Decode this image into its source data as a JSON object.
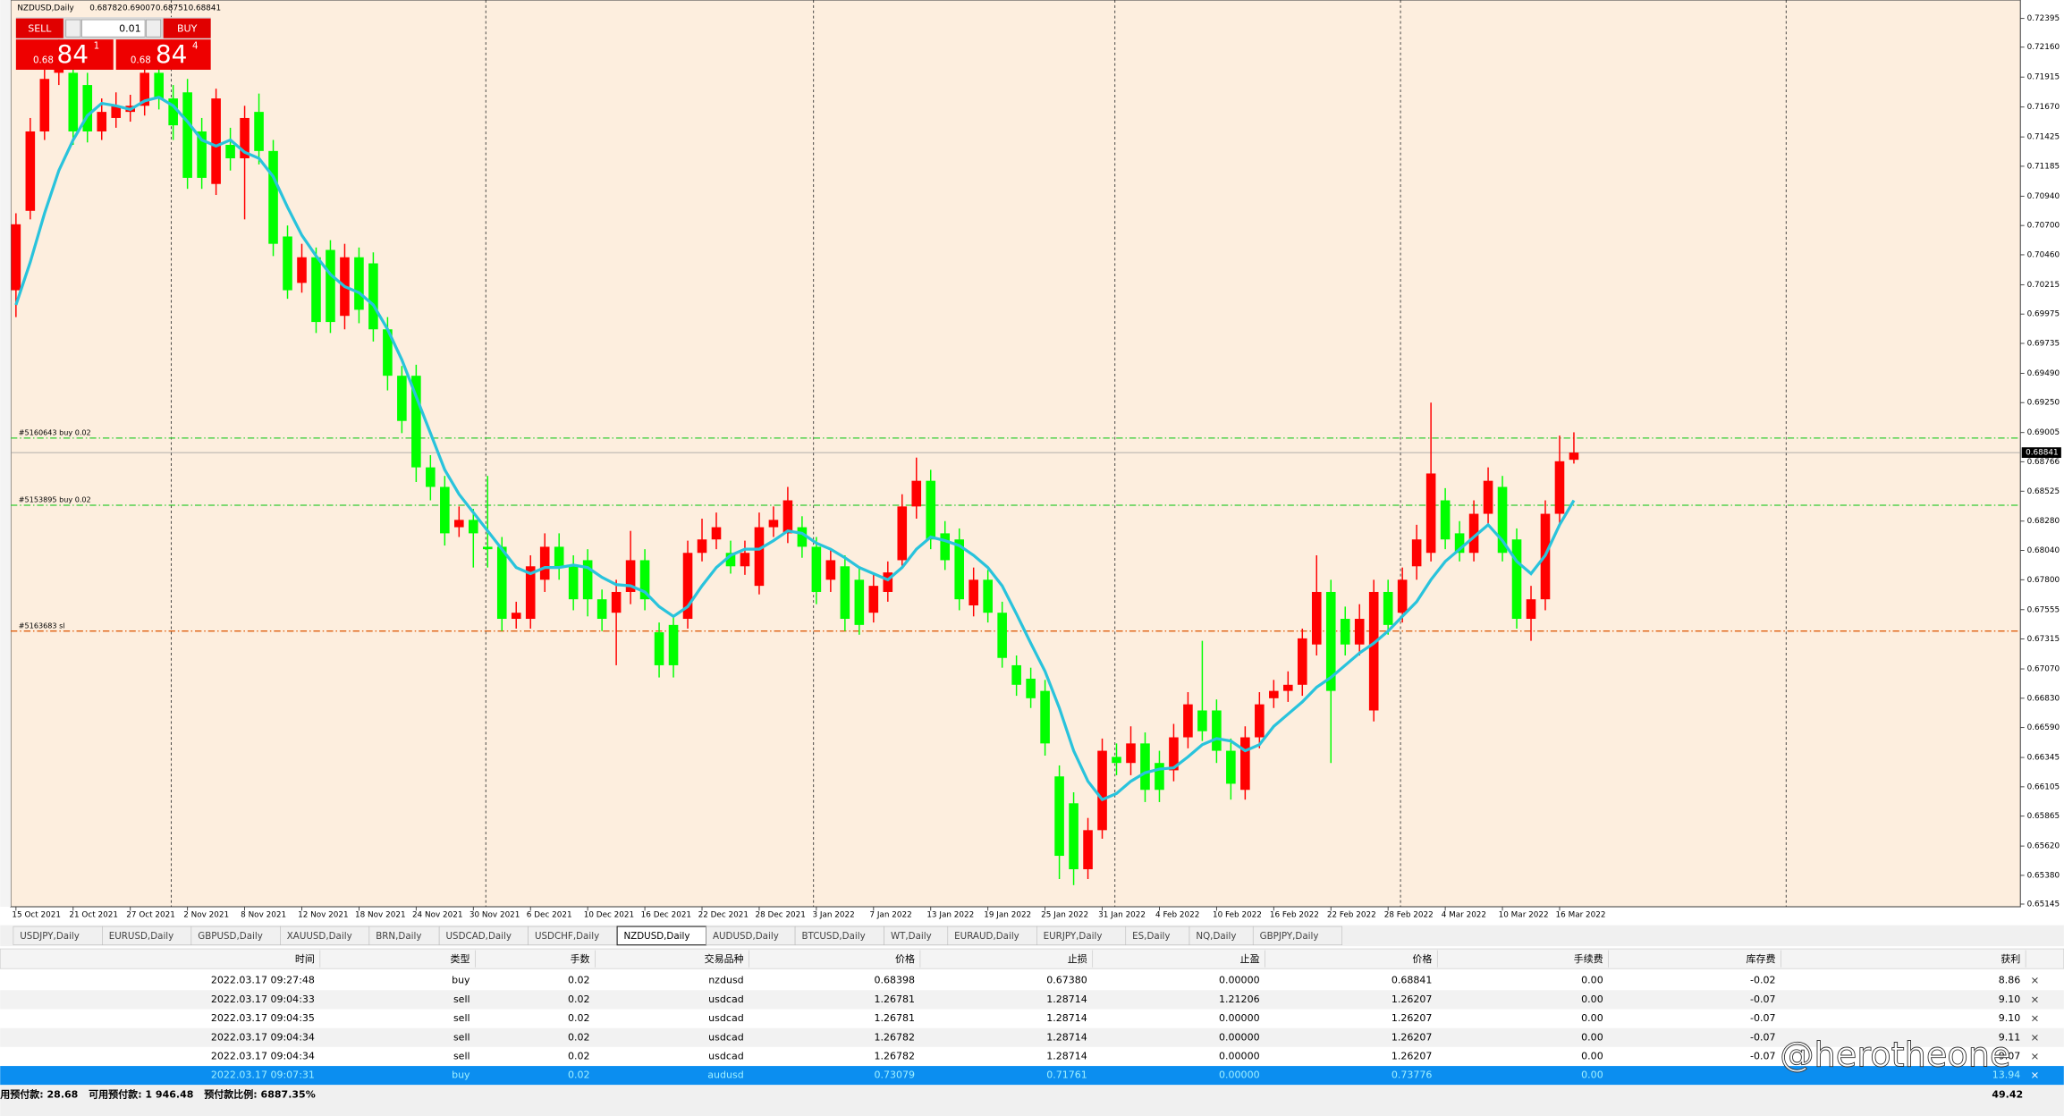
{
  "chart_data": {
    "type": "candlestick",
    "symbol": "NZDUSD,Daily",
    "up_color": "#ff0000",
    "down_color": "#00ff00",
    "categories": [
      "15 Oct 2021",
      null,
      null,
      null,
      "21 Oct 2021",
      null,
      null,
      null,
      "27 Oct 2021",
      null,
      null,
      null,
      "2 Nov 2021",
      null,
      null,
      null,
      "8 Nov 2021",
      null,
      null,
      null,
      "12 Nov 2021",
      null,
      null,
      null,
      "18 Nov 2021",
      null,
      null,
      null,
      "24 Nov 2021",
      null,
      null,
      null,
      "30 Nov 2021",
      null,
      null,
      null,
      "6 Dec 2021",
      null,
      null,
      null,
      "10 Dec 2021",
      null,
      null,
      null,
      "16 Dec 2021",
      null,
      null,
      null,
      "22 Dec 2021",
      null,
      null,
      null,
      "28 Dec 2021",
      null,
      null,
      null,
      "3 Jan 2022",
      null,
      null,
      null,
      "7 Jan 2022",
      null,
      null,
      null,
      "13 Jan 2022",
      null,
      null,
      null,
      "19 Jan 2022",
      null,
      null,
      null,
      "25 Jan 2022",
      null,
      null,
      null,
      "31 Jan 2022",
      null,
      null,
      null,
      "4 Feb 2022",
      null,
      null,
      null,
      "10 Feb 2022",
      null,
      null,
      null,
      "16 Feb 2022",
      null,
      null,
      null,
      "22 Feb 2022",
      null,
      null,
      null,
      "28 Feb 2022",
      null,
      null,
      null,
      "4 Mar 2022",
      null,
      null,
      null,
      "10 Mar 2022",
      null,
      null,
      null,
      "16 Mar 2022",
      null
    ],
    "open": [
      0.7017,
      0.7082,
      0.7147,
      0.7195,
      0.7195,
      0.7185,
      0.7147,
      0.7158,
      0.7163,
      0.7168,
      0.7195,
      0.7174,
      0.7179,
      0.7147,
      0.7104,
      0.7136,
      0.7125,
      0.7163,
      0.7131,
      0.7061,
      0.7023,
      0.7044,
      0.705,
      0.6996,
      0.7044,
      0.7039,
      0.6985,
      0.6947,
      0.6947,
      0.6872,
      0.6856,
      0.6823,
      0.6829,
      0.6807,
      0.6807,
      0.6748,
      0.6748,
      0.678,
      0.6807,
      0.6791,
      0.6796,
      0.6764,
      0.6753,
      0.677,
      0.6796,
      0.6737,
      0.6743,
      0.6748,
      0.6802,
      0.6813,
      0.6802,
      0.6791,
      0.6775,
      0.6823,
      0.6818,
      0.6823,
      0.6807,
      0.678,
      0.6791,
      0.678,
      0.6753,
      0.677,
      0.6796,
      0.684,
      0.6861,
      0.6818,
      0.6813,
      0.6759,
      0.678,
      0.6753,
      0.671,
      0.6699,
      0.6689,
      0.6619,
      0.6597,
      0.6543,
      0.6575,
      0.6635,
      0.663,
      0.6646,
      0.663,
      0.6624,
      0.6651,
      0.6673,
      0.6673,
      0.664,
      0.6608,
      0.6651,
      0.6683,
      0.6689,
      0.6694,
      0.6727,
      0.677,
      0.6748,
      0.6727,
      0.6673,
      0.677,
      0.6753,
      0.6791,
      0.6802,
      0.6845,
      0.6818,
      0.6802,
      0.6834,
      0.6856,
      0.6813,
      0.6748,
      0.6764,
      0.6834,
      0.68782
    ],
    "high": [
      0.708,
      0.7158,
      0.7205,
      0.7225,
      0.7205,
      0.7195,
      0.7174,
      0.7179,
      0.7177,
      0.721,
      0.7205,
      0.7185,
      0.719,
      0.7158,
      0.7182,
      0.715,
      0.7168,
      0.7178,
      0.714,
      0.707,
      0.7055,
      0.7052,
      0.7058,
      0.7055,
      0.7052,
      0.7048,
      0.6995,
      0.6955,
      0.6956,
      0.6882,
      0.6865,
      0.684,
      0.6838,
      0.6865,
      0.6815,
      0.6762,
      0.68,
      0.6818,
      0.6818,
      0.68,
      0.6805,
      0.6772,
      0.678,
      0.682,
      0.6805,
      0.6745,
      0.675,
      0.6812,
      0.683,
      0.6835,
      0.6812,
      0.6812,
      0.6835,
      0.684,
      0.6856,
      0.6832,
      0.6815,
      0.6805,
      0.68,
      0.679,
      0.6785,
      0.6795,
      0.685,
      0.688,
      0.687,
      0.6828,
      0.6822,
      0.679,
      0.6788,
      0.6762,
      0.6718,
      0.6708,
      0.6698,
      0.6628,
      0.6606,
      0.6585,
      0.665,
      0.6646,
      0.666,
      0.6655,
      0.664,
      0.6662,
      0.6688,
      0.673,
      0.6682,
      0.665,
      0.666,
      0.6688,
      0.6698,
      0.6705,
      0.674,
      0.68,
      0.678,
      0.6758,
      0.676,
      0.678,
      0.678,
      0.679,
      0.6825,
      0.6925,
      0.6855,
      0.6828,
      0.6845,
      0.6872,
      0.6865,
      0.6822,
      0.6775,
      0.6845,
      0.6898,
      0.69007
    ],
    "low": [
      0.6995,
      0.7075,
      0.714,
      0.7185,
      0.7136,
      0.7138,
      0.714,
      0.715,
      0.7155,
      0.716,
      0.7165,
      0.714,
      0.71,
      0.71,
      0.7095,
      0.7115,
      0.7075,
      0.712,
      0.7045,
      0.701,
      0.7015,
      0.6982,
      0.6982,
      0.6985,
      0.699,
      0.6975,
      0.6935,
      0.69,
      0.686,
      0.6845,
      0.6808,
      0.6815,
      0.679,
      0.679,
      0.6738,
      0.674,
      0.674,
      0.677,
      0.678,
      0.6755,
      0.675,
      0.6738,
      0.671,
      0.676,
      0.6755,
      0.67,
      0.67,
      0.674,
      0.6795,
      0.6805,
      0.6785,
      0.6784,
      0.6768,
      0.6815,
      0.681,
      0.6798,
      0.676,
      0.677,
      0.6738,
      0.6735,
      0.6745,
      0.6762,
      0.679,
      0.683,
      0.6805,
      0.6788,
      0.6755,
      0.675,
      0.6745,
      0.6708,
      0.6685,
      0.6675,
      0.6636,
      0.6535,
      0.653,
      0.6535,
      0.6568,
      0.662,
      0.662,
      0.6598,
      0.6598,
      0.6615,
      0.6642,
      0.6648,
      0.663,
      0.66,
      0.66,
      0.6642,
      0.6675,
      0.668,
      0.6685,
      0.6718,
      0.663,
      0.6718,
      0.6718,
      0.6664,
      0.6735,
      0.6745,
      0.678,
      0.6795,
      0.6805,
      0.6795,
      0.6795,
      0.6825,
      0.6795,
      0.674,
      0.673,
      0.6755,
      0.6825,
      0.68751
    ],
    "close": [
      0.7071,
      0.7147,
      0.719,
      0.7211,
      0.7147,
      0.7147,
      0.7163,
      0.7168,
      0.7168,
      0.7195,
      0.7174,
      0.7152,
      0.7109,
      0.7109,
      0.7174,
      0.7125,
      0.7158,
      0.7131,
      0.7055,
      0.7017,
      0.7044,
      0.6991,
      0.6991,
      0.7044,
      0.7001,
      0.6985,
      0.6947,
      0.691,
      0.6872,
      0.6856,
      0.6818,
      0.6829,
      0.6818,
      0.6805,
      0.6748,
      0.6753,
      0.6791,
      0.6807,
      0.6791,
      0.6764,
      0.6764,
      0.6748,
      0.677,
      0.6796,
      0.6764,
      0.671,
      0.671,
      0.6802,
      0.6813,
      0.6823,
      0.6791,
      0.6802,
      0.6823,
      0.6829,
      0.6845,
      0.6807,
      0.677,
      0.6796,
      0.6748,
      0.6743,
      0.6775,
      0.6786,
      0.684,
      0.6861,
      0.6813,
      0.6796,
      0.6764,
      0.678,
      0.6753,
      0.6716,
      0.6694,
      0.6683,
      0.6646,
      0.6554,
      0.6543,
      0.6575,
      0.664,
      0.663,
      0.6646,
      0.6608,
      0.6608,
      0.6651,
      0.6678,
      0.6656,
      0.664,
      0.6613,
      0.6651,
      0.6678,
      0.6689,
      0.6694,
      0.6732,
      0.677,
      0.6689,
      0.6727,
      0.6748,
      0.677,
      0.6743,
      0.678,
      0.6813,
      0.6867,
      0.6813,
      0.6802,
      0.6834,
      0.6861,
      0.6802,
      0.6748,
      0.6764,
      0.6834,
      0.6877,
      0.68841
    ],
    "ma": {
      "color": "#29c3dc",
      "values": [
        0.7005,
        0.704,
        0.708,
        0.7115,
        0.714,
        0.716,
        0.717,
        0.7168,
        0.7165,
        0.7172,
        0.7175,
        0.7168,
        0.7155,
        0.714,
        0.7135,
        0.714,
        0.713,
        0.7125,
        0.711,
        0.7085,
        0.7062,
        0.7045,
        0.703,
        0.702,
        0.7015,
        0.7005,
        0.6985,
        0.696,
        0.693,
        0.69,
        0.687,
        0.685,
        0.6835,
        0.682,
        0.6805,
        0.679,
        0.6785,
        0.679,
        0.679,
        0.6792,
        0.679,
        0.6782,
        0.6776,
        0.6775,
        0.677,
        0.6758,
        0.675,
        0.6758,
        0.6775,
        0.679,
        0.68,
        0.6805,
        0.6805,
        0.6812,
        0.682,
        0.6818,
        0.681,
        0.6805,
        0.6798,
        0.679,
        0.6785,
        0.678,
        0.679,
        0.6805,
        0.6815,
        0.6812,
        0.6808,
        0.68,
        0.679,
        0.6775,
        0.6752,
        0.6728,
        0.6705,
        0.6675,
        0.664,
        0.6615,
        0.66,
        0.6605,
        0.6615,
        0.6622,
        0.6625,
        0.6626,
        0.6635,
        0.6645,
        0.665,
        0.6648,
        0.664,
        0.6645,
        0.666,
        0.667,
        0.668,
        0.6692,
        0.67,
        0.671,
        0.672,
        0.6728,
        0.6738,
        0.675,
        0.6762,
        0.678,
        0.6795,
        0.6805,
        0.6815,
        0.6825,
        0.6812,
        0.6795,
        0.6785,
        0.68,
        0.6825,
        0.6845
      ]
    },
    "ylim": [
      0.65123,
      0.72546
    ],
    "yticks": [
      0.72395,
      {
        "value": 0.7216,
        "label": "0.72160"
      },
      0.71915,
      {
        "value": 0.7167,
        "label": "0.71670"
      },
      0.71425,
      0.71185,
      {
        "value": 0.7094,
        "label": "0.70940"
      },
      {
        "value": 0.707,
        "label": "0.70700"
      },
      {
        "value": 0.7046,
        "label": "0.70460"
      },
      0.70215,
      0.69975,
      0.69735,
      {
        "value": 0.6949,
        "label": "0.69490"
      },
      {
        "value": 0.6925,
        "label": "0.69250"
      },
      0.69005,
      0.68766,
      0.68525,
      {
        "value": 0.6828,
        "label": "0.68280"
      },
      {
        "value": 0.6804,
        "label": "0.68040"
      },
      {
        "value": 0.678,
        "label": "0.67800"
      },
      0.67555,
      0.67315,
      {
        "value": 0.6707,
        "label": "0.67070"
      },
      {
        "value": 0.6683,
        "label": "0.66830"
      },
      {
        "value": 0.6659,
        "label": "0.66590"
      },
      0.66345,
      0.66105,
      0.65865,
      {
        "value": 0.6562,
        "label": "0.65620"
      },
      {
        "value": 0.6538,
        "label": "0.65380"
      },
      0.65145
    ],
    "order_lines": [
      {
        "label": "#5160643 buy 0.02",
        "price": 0.6896,
        "color": "#33cc33"
      },
      {
        "label": "#5153895 buy 0.02",
        "price": 0.6841,
        "color": "#33cc33"
      },
      {
        "label": "#5163683 sl",
        "price": 0.6738,
        "color": "#e06010"
      }
    ]
  },
  "trade_panel": {
    "sell_button": "SELL",
    "buy_button": "BUY",
    "lot": "0.01",
    "sell": {
      "prefix": "0.68",
      "big": "84",
      "sup": "1"
    },
    "buy": {
      "prefix": "0.68",
      "big": "84",
      "sup": "4"
    }
  },
  "tabs": [
    "USDJPY,Daily",
    "EURUSD,Daily",
    "GBPUSD,Daily",
    "XAUUSD,Daily",
    "BRN,Daily",
    "USDCAD,Daily",
    "USDCHF,Daily",
    "NZDUSD,Daily",
    "AUDUSD,Daily",
    "BTCUSD,Daily",
    "WT,Daily",
    "EURAUD,Daily",
    "EURJPY,Daily",
    "ES,Daily",
    "NQ,Daily",
    "GBPJPY,Daily"
  ],
  "active_tab": 7,
  "table": {
    "headers": [
      "时间",
      "类型",
      "手数",
      "交易品种",
      "价格",
      "止损",
      "止盈",
      "价格",
      "手续费",
      "库存费",
      "获利"
    ],
    "rows": [
      [
        "2022.03.17 09:27:48",
        "buy",
        "0.02",
        "nzdusd",
        "0.68398",
        "0.67380",
        "0.00000",
        "0.68841",
        "0.00",
        "-0.02",
        "8.86"
      ],
      [
        "2022.03.17 09:04:33",
        "sell",
        "0.02",
        "usdcad",
        "1.26781",
        "1.28714",
        "1.21206",
        "1.26207",
        "0.00",
        "-0.07",
        "9.10"
      ],
      [
        "2022.03.17 09:04:35",
        "sell",
        "0.02",
        "usdcad",
        "1.26781",
        "1.28714",
        "0.00000",
        "1.26207",
        "0.00",
        "-0.07",
        "9.10"
      ],
      [
        "2022.03.17 09:04:34",
        "sell",
        "0.02",
        "usdcad",
        "1.26782",
        "1.28714",
        "0.00000",
        "1.26207",
        "0.00",
        "-0.07",
        "9.11"
      ],
      [
        "2022.03.17 09:04:34",
        "sell",
        "0.02",
        "usdcad",
        "1.26782",
        "1.28714",
        "0.00000",
        "1.26207",
        "0.00",
        "-0.07",
        "9.07"
      ],
      [
        "2022.03.17 09:07:31",
        "buy",
        "0.02",
        "audusd",
        "0.73079",
        "0.71761",
        "0.00000",
        "0.73776",
        "0.00",
        null,
        "13.94"
      ]
    ],
    "selected_row": 5
  },
  "footer": {
    "items": [
      "用预付款: 28.68",
      "可用预付款: 1 946.48",
      "预付款比例: 6887.35%"
    ],
    "total": "49.42"
  },
  "watermark": "@herotheone"
}
